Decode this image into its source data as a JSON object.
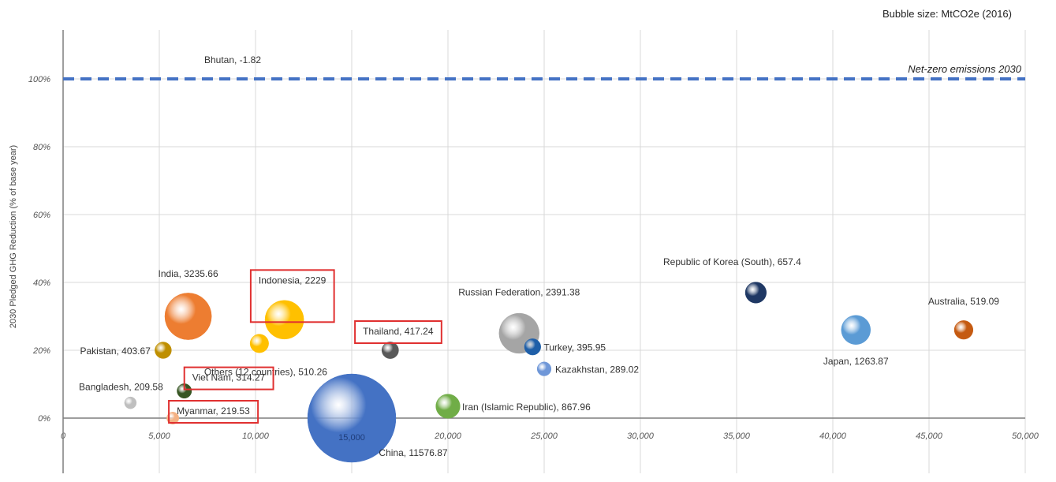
{
  "chart_data": {
    "type": "bubble",
    "size_note": "Bubble size: MtCO2e (2016)",
    "ylabel": "2030 Pledged GHG Reduction (% of base year)",
    "xlabel": "",
    "xlim": [
      0,
      50000
    ],
    "ylim": [
      -0.1,
      1.15
    ],
    "x_ticks": [
      "0",
      "5,000",
      "10,000",
      "15,000",
      "20,000",
      "25,000",
      "30,000",
      "35,000",
      "40,000",
      "45,000",
      "50,000"
    ],
    "y_ticks": [
      "0%",
      "20%",
      "40%",
      "60%",
      "80%",
      "100%"
    ],
    "reference_line": {
      "y": 1.0,
      "label": "Net-zero emissions 2030",
      "color": "#4472c4"
    },
    "center_label": "15,000",
    "points": [
      {
        "name": "Bhutan",
        "label": "Bhutan, -1.82",
        "x": 10000,
        "y": 1.0,
        "size": 0,
        "color": "#4472c4",
        "highlight": false
      },
      {
        "name": "India",
        "label": "India, 3235.66",
        "x": 6500,
        "y": 0.3,
        "size": 3235.66,
        "color": "#ed7d31",
        "highlight": false
      },
      {
        "name": "Indonesia",
        "label": "Indonesia, 2229",
        "x": 11500,
        "y": 0.29,
        "size": 2229,
        "color": "#ffc000",
        "highlight": true
      },
      {
        "name": "Pakistan",
        "label": "Pakistan, 403.67",
        "x": 5200,
        "y": 0.2,
        "size": 403.67,
        "color": "#bf8f00",
        "highlight": false
      },
      {
        "name": "Others",
        "label": "Others (12 countries), 510.26",
        "x": 10200,
        "y": 0.22,
        "size": 510.26,
        "color": "#ffc000",
        "highlight": false
      },
      {
        "name": "Thailand",
        "label": "Thailand, 417.24",
        "x": 17000,
        "y": 0.2,
        "size": 417.24,
        "color": "#595959",
        "highlight": true
      },
      {
        "name": "Russian Federation",
        "label": "Russian Federation, 2391.38",
        "x": 23700,
        "y": 0.25,
        "size": 2391.38,
        "color": "#a5a5a5",
        "highlight": false
      },
      {
        "name": "Turkey",
        "label": "Turkey, 395.95",
        "x": 24400,
        "y": 0.21,
        "size": 395.95,
        "color": "#1f5fa8",
        "highlight": false
      },
      {
        "name": "Kazakhstan",
        "label": "Kazakhstan, 289.02",
        "x": 25000,
        "y": 0.145,
        "size": 289.02,
        "color": "#6f97d8",
        "highlight": false
      },
      {
        "name": "Republic of Korea (South)",
        "label": "Republic of Korea (South), 657.4",
        "x": 36000,
        "y": 0.37,
        "size": 657.4,
        "color": "#1f3864",
        "highlight": false
      },
      {
        "name": "Japan",
        "label": "Japan, 1263.87",
        "x": 41200,
        "y": 0.26,
        "size": 1263.87,
        "color": "#5b9bd5",
        "highlight": false
      },
      {
        "name": "Australia",
        "label": "Australia, 519.09",
        "x": 46800,
        "y": 0.26,
        "size": 519.09,
        "color": "#c55a11",
        "highlight": false
      },
      {
        "name": "Bangladesh",
        "label": "Bangladesh, 209.58",
        "x": 3500,
        "y": 0.045,
        "size": 209.58,
        "color": "#bfbfbf",
        "highlight": false
      },
      {
        "name": "Viet Nam",
        "label": "Viet Nam, 314.27",
        "x": 6300,
        "y": 0.08,
        "size": 314.27,
        "color": "#375623",
        "highlight": true
      },
      {
        "name": "Myanmar",
        "label": "Myanmar, 219.53",
        "x": 5700,
        "y": 0.0,
        "size": 219.53,
        "color": "#f4b183",
        "highlight": true
      },
      {
        "name": "Iran (Islamic Republic)",
        "label": "Iran (Islamic Republic), 867.96",
        "x": 20000,
        "y": 0.035,
        "size": 867.96,
        "color": "#70ad47",
        "highlight": false
      },
      {
        "name": "China",
        "label": "China, 11576.87",
        "x": 15000,
        "y": 0.0,
        "size": 11576.87,
        "color": "#4472c4",
        "highlight": false
      }
    ]
  }
}
